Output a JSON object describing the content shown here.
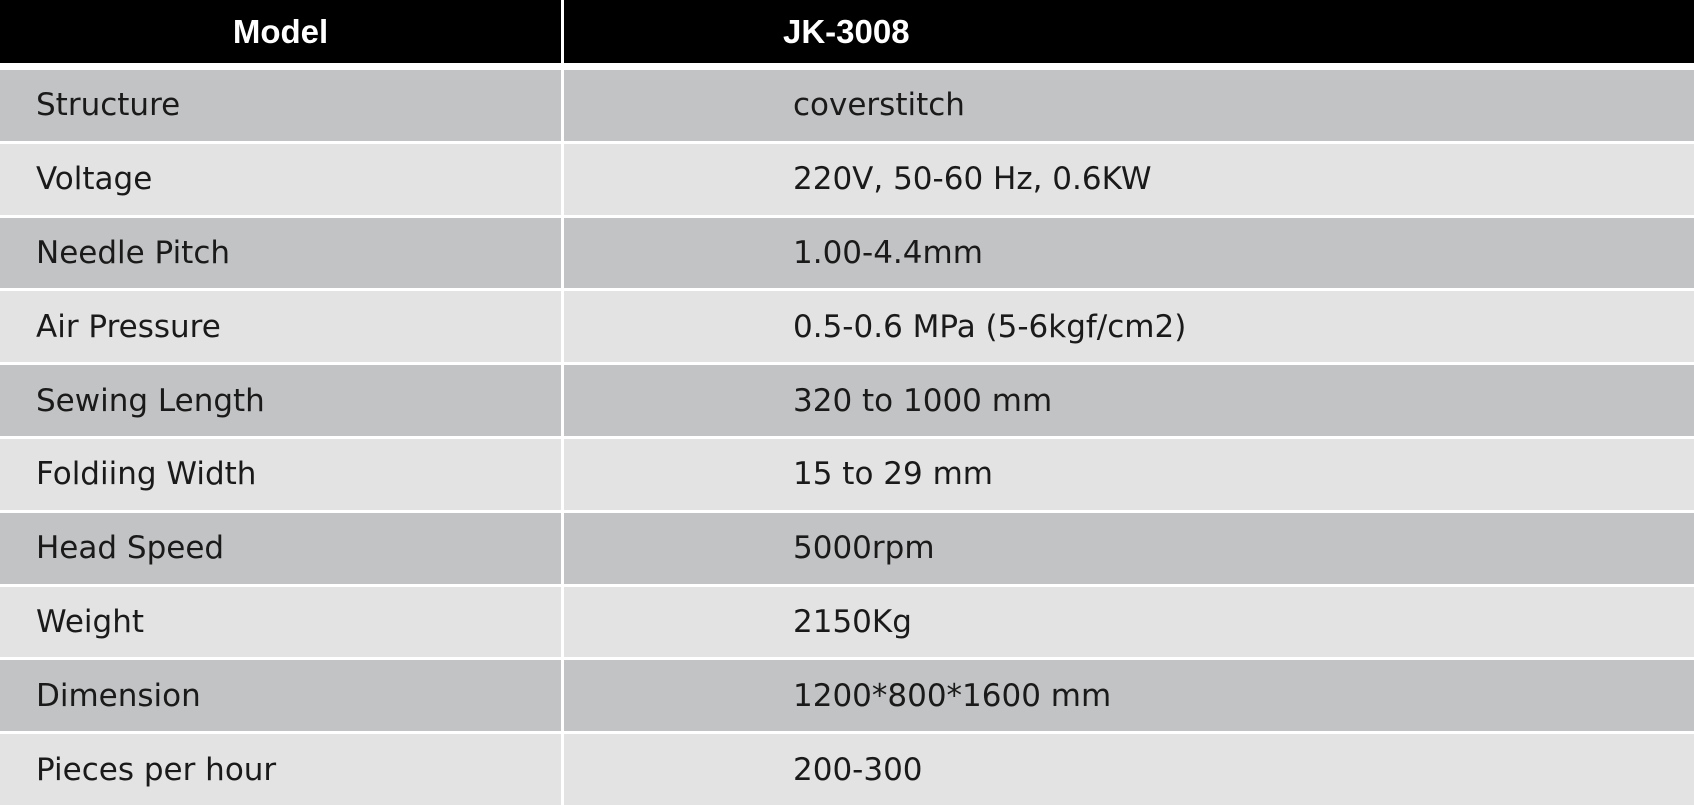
{
  "header": {
    "cells": [
      "Model",
      "JK-3008"
    ]
  },
  "table": {
    "rows": [
      [
        "Structure",
        "coverstitch"
      ],
      [
        "Voltage",
        "220V, 50-60 Hz, 0.6KW"
      ],
      [
        "Needle Pitch",
        "1.00-4.4mm"
      ],
      [
        "Air Pressure",
        "0.5-0.6 MPa (5-6kgf/cm2)"
      ],
      [
        "Sewing Length",
        "320 to 1000 mm"
      ],
      [
        "Foldiing Width",
        "15 to 29 mm"
      ],
      [
        "Head Speed",
        "5000rpm"
      ],
      [
        "Weight",
        "2150Kg"
      ],
      [
        "Dimension",
        "1200*800*1600 mm"
      ],
      [
        "Pieces per hour",
        "200-300"
      ]
    ]
  }
}
